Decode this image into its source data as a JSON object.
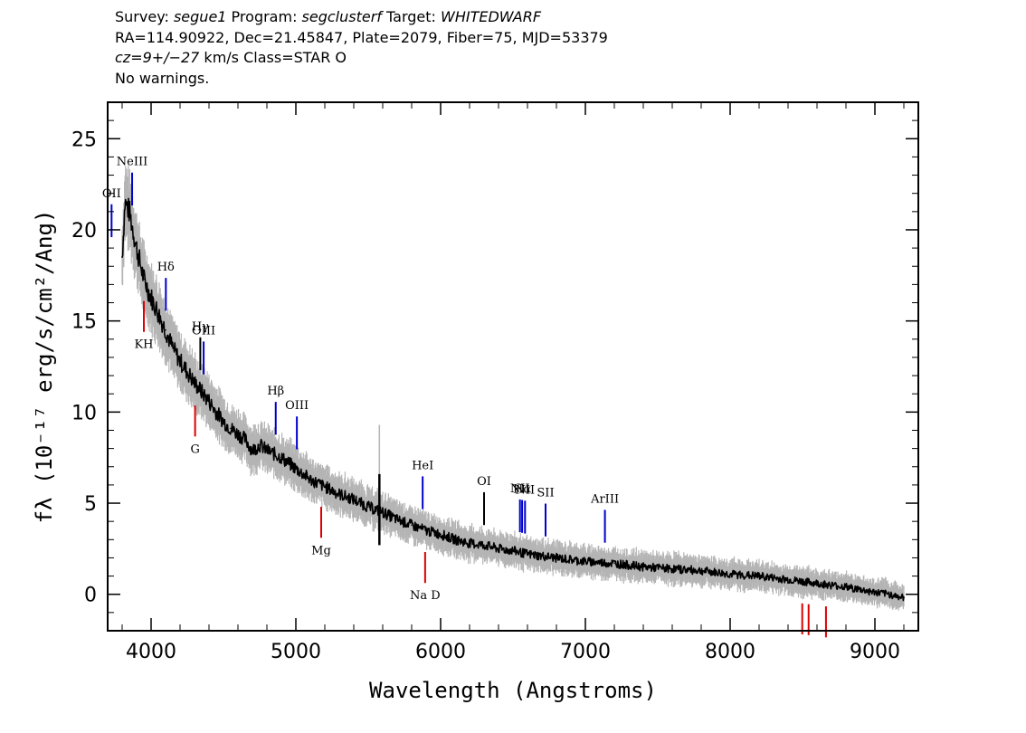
{
  "header": {
    "line1": {
      "survey_label": "Survey: ",
      "survey": "segue1",
      "program_label": " Program: ",
      "program": "segclusterf",
      "target_label": " Target: ",
      "target": "WHITEDWARF"
    },
    "line2": "RA=114.90922, Dec=21.45847, Plate=2079, Fiber=75, MJD=53379",
    "line3": {
      "cz": "cz=9+/−27",
      "rest": " km/s Class=STAR O"
    },
    "line4": "No warnings."
  },
  "chart_data": {
    "type": "line",
    "xlabel": "Wavelength (Angstroms)",
    "ylabel": "fλ (10⁻¹⁷ erg/s/cm²/Ang)",
    "xlim": [
      3700,
      9300
    ],
    "ylim": [
      -2,
      27
    ],
    "x_ticks": [
      4000,
      5000,
      6000,
      7000,
      8000,
      9000
    ],
    "y_ticks": [
      0,
      5,
      10,
      15,
      20,
      25
    ],
    "x_tick_labels": [
      "4000",
      "5000",
      "6000",
      "7000",
      "8000",
      "9000"
    ],
    "y_tick_labels": [
      "0",
      "5",
      "10",
      "15",
      "20",
      "25"
    ],
    "series": [
      {
        "color": "#000000",
        "error_color": "#b4b4b4",
        "x": [
          3800,
          3820,
          3850,
          3900,
          3950,
          4000,
          4050,
          4100,
          4150,
          4200,
          4250,
          4300,
          4350,
          4400,
          4450,
          4500,
          4550,
          4600,
          4650,
          4700,
          4750,
          4800,
          4850,
          4900,
          4950,
          5000,
          5100,
          5200,
          5300,
          5400,
          5500,
          5600,
          5700,
          5800,
          5900,
          6000,
          6100,
          6200,
          6300,
          6400,
          6500,
          6600,
          6700,
          6800,
          6900,
          7000,
          7200,
          7400,
          7600,
          7800,
          8000,
          8200,
          8400,
          8600,
          8800,
          9000,
          9100,
          9200
        ],
        "values": [
          18.5,
          21.5,
          21.0,
          19.0,
          17.3,
          16.3,
          15.4,
          14.5,
          13.5,
          12.8,
          12.2,
          11.6,
          11.1,
          10.6,
          10.0,
          9.5,
          9.1,
          8.8,
          8.5,
          7.9,
          8.2,
          7.9,
          7.7,
          7.5,
          7.2,
          6.9,
          6.3,
          5.9,
          5.5,
          5.2,
          4.8,
          4.5,
          4.1,
          3.8,
          3.5,
          3.3,
          3.0,
          2.8,
          2.7,
          2.5,
          2.4,
          2.2,
          2.1,
          2.0,
          1.9,
          1.8,
          1.7,
          1.5,
          1.4,
          1.3,
          1.1,
          1.0,
          0.8,
          0.6,
          0.4,
          0.1,
          0.0,
          -0.2
        ]
      }
    ],
    "emission_lines": [
      {
        "label": "OII",
        "wavelength": 3727,
        "color": "blue"
      },
      {
        "label": "NeIII",
        "wavelength": 3869,
        "color": "blue"
      },
      {
        "label": "Hδ",
        "wavelength": 4102,
        "color": "blue"
      },
      {
        "label": "Hγ",
        "wavelength": 4340,
        "color": "black"
      },
      {
        "label": "OIII",
        "wavelength": 4363,
        "color": "blue"
      },
      {
        "label": "Hβ",
        "wavelength": 4861,
        "color": "blue"
      },
      {
        "label": "OIII",
        "wavelength": 5007,
        "color": "blue"
      },
      {
        "label": "HeI",
        "wavelength": 5876,
        "color": "blue"
      },
      {
        "label": "OI",
        "wavelength": 6300,
        "color": "black"
      },
      {
        "label": "NII",
        "wavelength": 6548,
        "color": "blue"
      },
      {
        "label": "Hα",
        "wavelength": 6563,
        "color": "blue"
      },
      {
        "label": "NII",
        "wavelength": 6583,
        "color": "blue"
      },
      {
        "label": "SII",
        "wavelength": 6725,
        "color": "blue"
      },
      {
        "label": "ArIII",
        "wavelength": 7135,
        "color": "blue"
      }
    ],
    "absorption_lines": [
      {
        "label": "KH",
        "wavelength": 3950,
        "color": "red"
      },
      {
        "label": "G",
        "wavelength": 4304,
        "color": "red"
      },
      {
        "label": "Mg",
        "wavelength": 5175,
        "color": "red"
      },
      {
        "label": "Na D",
        "wavelength": 5893,
        "color": "red"
      },
      {
        "label": "",
        "wavelength": 8498,
        "color": "red"
      },
      {
        "label": "",
        "wavelength": 8542,
        "color": "red"
      },
      {
        "label": "",
        "wavelength": 8662,
        "color": "red"
      }
    ]
  }
}
